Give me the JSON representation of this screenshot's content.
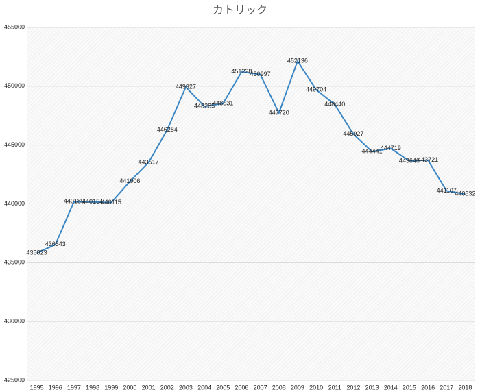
{
  "chart_data": {
    "type": "line",
    "title": "カトリック",
    "categories": [
      "1995",
      "1996",
      "1997",
      "1998",
      "1999",
      "2000",
      "2001",
      "2002",
      "2003",
      "2004",
      "2005",
      "2006",
      "2007",
      "2008",
      "2009",
      "2010",
      "2011",
      "2012",
      "2013",
      "2014",
      "2015",
      "2016",
      "2017",
      "2018"
    ],
    "values": [
      435823,
      436543,
      440189,
      440154,
      440115,
      441906,
      443517,
      446284,
      449927,
      448285,
      448531,
      451228,
      450997,
      447720,
      452136,
      449704,
      448440,
      445927,
      444441,
      444719,
      443646,
      443721,
      441107,
      440832
    ],
    "color": "#3a86c4",
    "ylim": [
      425000,
      455000
    ],
    "yticks": [
      425000,
      430000,
      435000,
      440000,
      445000,
      450000,
      455000
    ],
    "grid": true
  }
}
